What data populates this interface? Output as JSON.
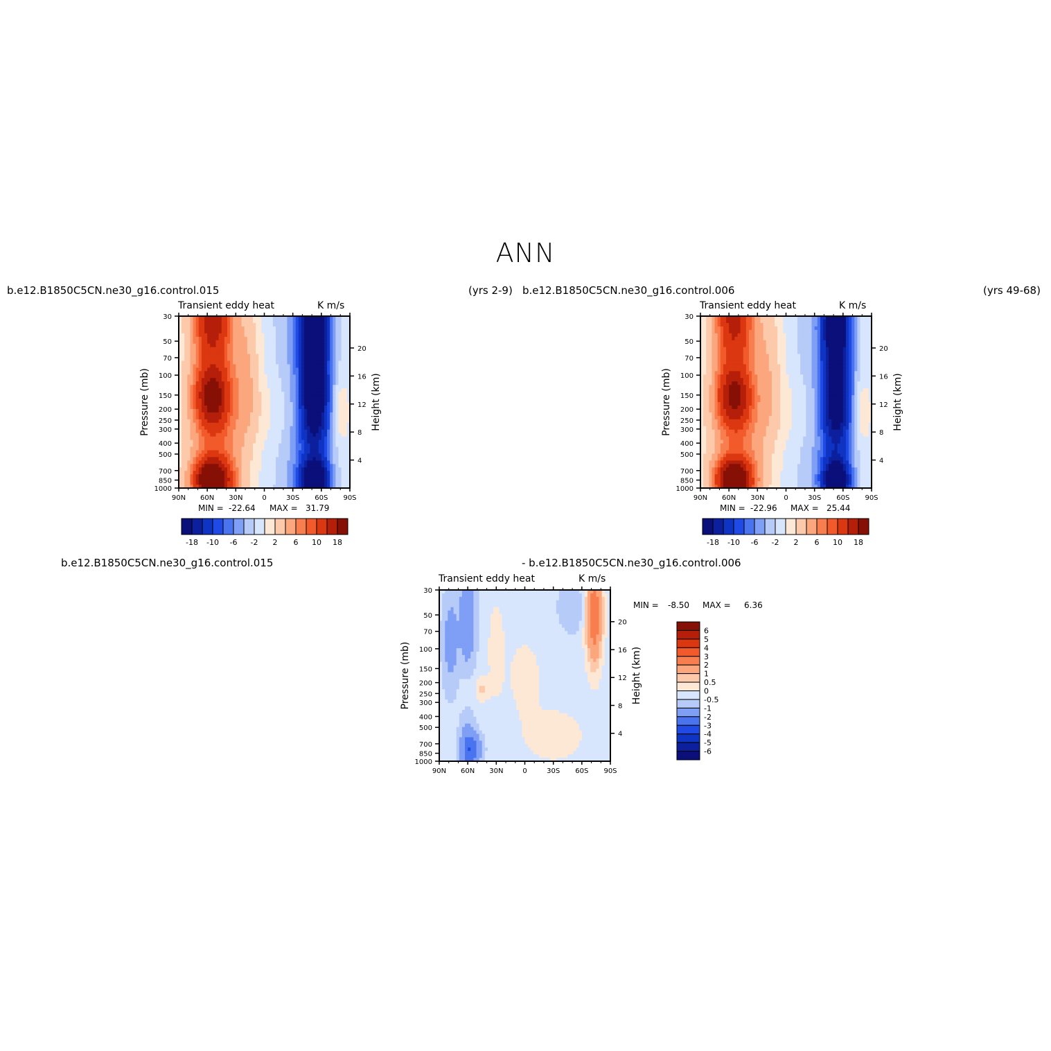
{
  "page_title": "ANN",
  "panels": {
    "top_left": {
      "case_left": "b.e12.B1850C5CN.ne30_g16.control.015",
      "case_right": "(yrs 2-9)",
      "variable": "Transient eddy heat",
      "units": "K m/s",
      "min_label": "MIN =",
      "min_value": "-22.64",
      "max_label": "MAX =",
      "max_value": "31.79"
    },
    "top_right": {
      "case_left": "b.e12.B1850C5CN.ne30_g16.control.006",
      "case_right": "(yrs 49-68)",
      "variable": "Transient eddy heat",
      "units": "K m/s",
      "min_label": "MIN =",
      "min_value": "-22.96",
      "max_label": "MAX =",
      "max_value": "25.44"
    },
    "bottom": {
      "case_left": "b.e12.B1850C5CN.ne30_g16.control.015",
      "case_right": "- b.e12.B1850C5CN.ne30_g16.control.006",
      "variable": "Transient eddy heat",
      "units": "K m/s",
      "min_label": "MIN =",
      "min_value": "-8.50",
      "max_label": "MAX =",
      "max_value": "6.36"
    }
  },
  "colors": {
    "neg": [
      "#0a0f7a",
      "#0c1f9c",
      "#0f33c2",
      "#1f4ae6",
      "#4a73f0",
      "#7f9ef5",
      "#b7cbf9",
      "#d8e6fd"
    ],
    "pos": [
      "#fde8d6",
      "#fcc9ab",
      "#fba67d",
      "#f97e4f",
      "#f25a2b",
      "#db3710",
      "#b51f0a",
      "#861005"
    ]
  },
  "chart_data": [
    {
      "type": "heatmap",
      "name": "control.015",
      "x_ticks": [
        "90N",
        "60N",
        "30N",
        "0",
        "30S",
        "60S",
        "90S"
      ],
      "x_values": [
        90,
        60,
        30,
        0,
        -30,
        -60,
        -90
      ],
      "y_ticks": [
        "30",
        "50",
        "70",
        "100",
        "150",
        "200",
        "250",
        "300",
        "400",
        "500",
        "700",
        "850",
        "1000"
      ],
      "y_values": [
        30,
        50,
        70,
        100,
        150,
        200,
        250,
        300,
        400,
        500,
        700,
        850,
        1000
      ],
      "y_log": true,
      "ylabel": "Pressure (mb)",
      "right_ticks": [
        "20",
        "16",
        "12",
        "8",
        "4"
      ],
      "right_values": [
        20,
        16,
        12,
        8,
        4
      ],
      "right_label": "Height (km)",
      "colorbar_ticks": [
        "-18",
        "-10",
        "-6",
        "-2",
        "2",
        "6",
        "10",
        "18"
      ],
      "levels": [
        -18,
        -14,
        -10,
        -8,
        -6,
        -4,
        -2,
        0,
        2,
        4,
        6,
        8,
        10,
        14,
        18
      ],
      "min": -22.64,
      "max": 31.79
    },
    {
      "type": "heatmap",
      "name": "control.006",
      "x_ticks": [
        "90N",
        "60N",
        "30N",
        "0",
        "30S",
        "60S",
        "90S"
      ],
      "x_values": [
        90,
        60,
        30,
        0,
        -30,
        -60,
        -90
      ],
      "y_ticks": [
        "30",
        "50",
        "70",
        "100",
        "150",
        "200",
        "250",
        "300",
        "400",
        "500",
        "700",
        "850",
        "1000"
      ],
      "y_values": [
        30,
        50,
        70,
        100,
        150,
        200,
        250,
        300,
        400,
        500,
        700,
        850,
        1000
      ],
      "y_log": true,
      "ylabel": "Pressure (mb)",
      "right_ticks": [
        "20",
        "16",
        "12",
        "8",
        "4"
      ],
      "right_values": [
        20,
        16,
        12,
        8,
        4
      ],
      "right_label": "Height (km)",
      "colorbar_ticks": [
        "-18",
        "-10",
        "-6",
        "-2",
        "2",
        "6",
        "10",
        "18"
      ],
      "levels": [
        -18,
        -14,
        -10,
        -8,
        -6,
        -4,
        -2,
        0,
        2,
        4,
        6,
        8,
        10,
        14,
        18
      ],
      "min": -22.96,
      "max": 25.44
    },
    {
      "type": "heatmap",
      "name": "difference",
      "x_ticks": [
        "90N",
        "60N",
        "30N",
        "0",
        "30S",
        "60S",
        "90S"
      ],
      "x_values": [
        90,
        60,
        30,
        0,
        -30,
        -60,
        -90
      ],
      "y_ticks": [
        "30",
        "50",
        "70",
        "100",
        "150",
        "200",
        "250",
        "300",
        "400",
        "500",
        "700",
        "850",
        "1000"
      ],
      "y_values": [
        30,
        50,
        70,
        100,
        150,
        200,
        250,
        300,
        400,
        500,
        700,
        850,
        1000
      ],
      "y_log": true,
      "ylabel": "Pressure (mb)",
      "right_ticks": [
        "20",
        "16",
        "12",
        "8",
        "4"
      ],
      "right_values": [
        20,
        16,
        12,
        8,
        4
      ],
      "right_label": "Height (km)",
      "colorbar_ticks": [
        "6",
        "5",
        "4",
        "3",
        "2",
        "1",
        "0.5",
        "0",
        "-0.5",
        "-1",
        "-2",
        "-3",
        "-4",
        "-5",
        "-6"
      ],
      "levels": [
        -6,
        -5,
        -4,
        -3,
        -2,
        -1,
        -0.5,
        0,
        0.5,
        1,
        2,
        3,
        4,
        5,
        6
      ],
      "min": -8.5,
      "max": 6.36
    }
  ]
}
